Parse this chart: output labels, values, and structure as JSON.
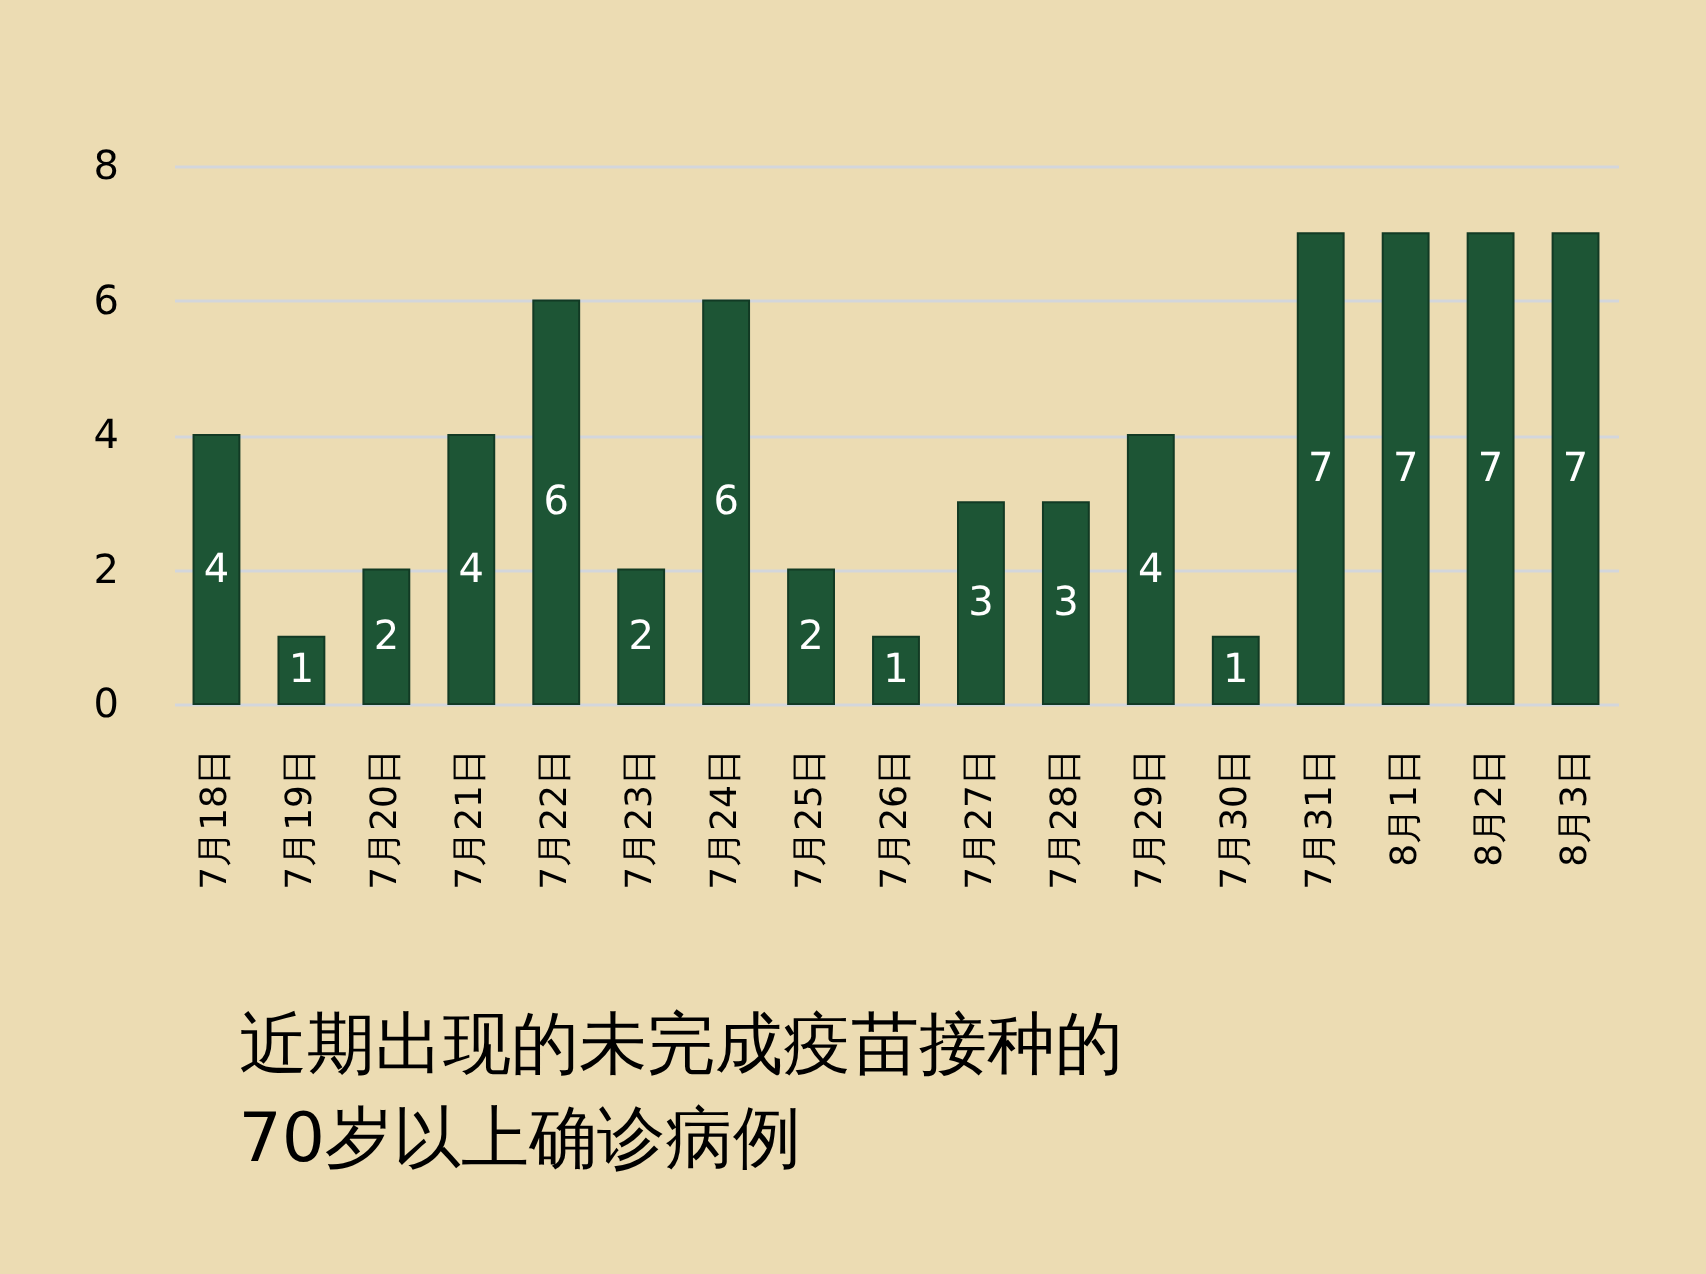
{
  "chart_data": {
    "type": "bar",
    "title": "近期出现的未完成疫苗接种的\n70岁以上确诊病例",
    "categories": [
      "7月18日",
      "7月19日",
      "7月20日",
      "7月21日",
      "7月22日",
      "7月23日",
      "7月24日",
      "7月25日",
      "7月26日",
      "7月27日",
      "7月28日",
      "7月29日",
      "7月30日",
      "7月31日",
      "8月1日",
      "8月2日",
      "8月3日"
    ],
    "values": [
      4,
      1,
      2,
      4,
      6,
      2,
      6,
      2,
      1,
      3,
      3,
      4,
      1,
      7,
      7,
      7,
      7
    ],
    "color": "#1d5535",
    "ylim": [
      0,
      8
    ],
    "yticks": [
      0,
      2,
      4,
      6,
      8
    ],
    "grid": "y",
    "data_labels": true
  }
}
